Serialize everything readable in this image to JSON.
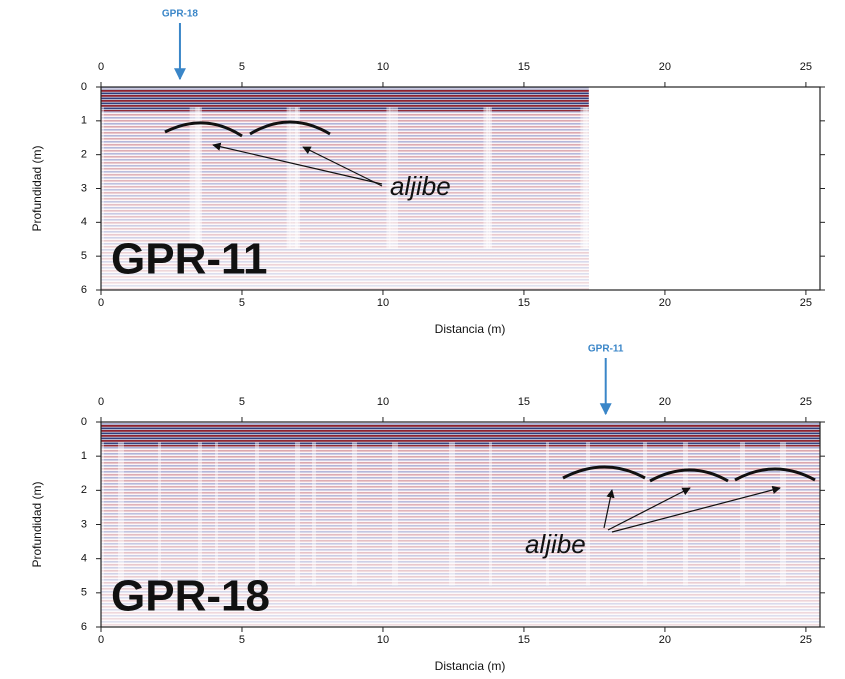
{
  "chart_data": [
    {
      "type": "radargram",
      "title": "GPR-11",
      "xlabel": "Distancia (m)",
      "ylabel": "Profundidad (m)",
      "xlim": [
        0,
        25.5
      ],
      "ylim": [
        0,
        6
      ],
      "y_inverted": true,
      "xticks": [
        0,
        5,
        10,
        15,
        20,
        25
      ],
      "yticks": [
        0,
        1,
        2,
        3,
        4,
        5,
        6
      ],
      "data_extent": 17.3,
      "crossing": {
        "label": "GPR-18",
        "x": 2.8
      },
      "annotation": "aljibe"
    },
    {
      "type": "radargram",
      "title": "GPR-18",
      "xlabel": "Distancia (m)",
      "ylabel": "Profundidad (m)",
      "xlim": [
        0,
        25.5
      ],
      "ylim": [
        0,
        6
      ],
      "y_inverted": true,
      "xticks": [
        0,
        5,
        10,
        15,
        20,
        25
      ],
      "yticks": [
        0,
        1,
        2,
        3,
        4,
        5,
        6
      ],
      "data_extent": 25.5,
      "crossing": {
        "label": "GPR-11",
        "x": 17.9
      },
      "annotation": "aljibe"
    }
  ]
}
